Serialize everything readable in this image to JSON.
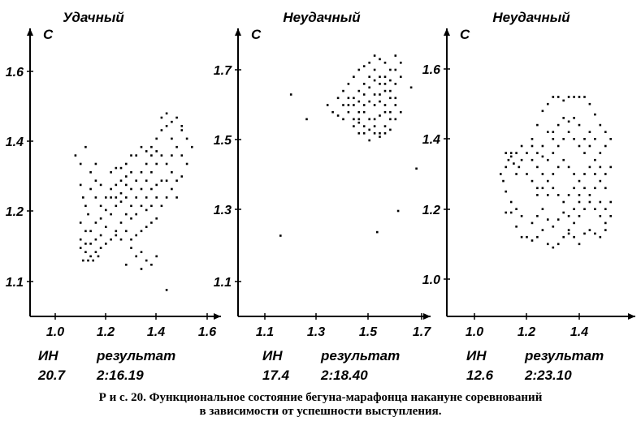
{
  "chart_data": [
    {
      "type": "scatter",
      "title": "Удачный",
      "ylabel": "С",
      "x_ticks": [
        "1.0",
        "1.2",
        "1.4",
        "1.6"
      ],
      "y_ticks": [
        "1.1",
        "1.2",
        "1.4",
        "1.6"
      ],
      "xlim": [
        0.9,
        1.64
      ],
      "ylim": [
        1.0,
        1.7
      ],
      "footer": {
        "label1": "ИН",
        "label2": "результат",
        "value1": "20.7",
        "value2": "2:16.19"
      },
      "points": [
        [
          1.08,
          1.4
        ],
        [
          1.12,
          1.42
        ],
        [
          1.1,
          1.38
        ],
        [
          1.14,
          1.36
        ],
        [
          1.16,
          1.38
        ],
        [
          1.1,
          1.33
        ],
        [
          1.11,
          1.3
        ],
        [
          1.12,
          1.28
        ],
        [
          1.13,
          1.26
        ],
        [
          1.1,
          1.24
        ],
        [
          1.12,
          1.22
        ],
        [
          1.14,
          1.22
        ],
        [
          1.16,
          1.24
        ],
        [
          1.18,
          1.25
        ],
        [
          1.2,
          1.23
        ],
        [
          1.1,
          1.2
        ],
        [
          1.12,
          1.19
        ],
        [
          1.14,
          1.19
        ],
        [
          1.16,
          1.2
        ],
        [
          1.18,
          1.21
        ],
        [
          1.1,
          1.18
        ],
        [
          1.12,
          1.17
        ],
        [
          1.14,
          1.16
        ],
        [
          1.16,
          1.17
        ],
        [
          1.11,
          1.15
        ],
        [
          1.13,
          1.15
        ],
        [
          1.15,
          1.15
        ],
        [
          1.17,
          1.16
        ],
        [
          1.18,
          1.18
        ],
        [
          1.2,
          1.19
        ],
        [
          1.22,
          1.2
        ],
        [
          1.24,
          1.21
        ],
        [
          1.22,
          1.26
        ],
        [
          1.24,
          1.28
        ],
        [
          1.26,
          1.29
        ],
        [
          1.28,
          1.3
        ],
        [
          1.2,
          1.3
        ],
        [
          1.22,
          1.32
        ],
        [
          1.24,
          1.33
        ],
        [
          1.26,
          1.34
        ],
        [
          1.28,
          1.35
        ],
        [
          1.3,
          1.36
        ],
        [
          1.22,
          1.36
        ],
        [
          1.24,
          1.37
        ],
        [
          1.26,
          1.37
        ],
        [
          1.28,
          1.38
        ],
        [
          1.3,
          1.4
        ],
        [
          1.32,
          1.4
        ],
        [
          1.34,
          1.42
        ],
        [
          1.36,
          1.41
        ],
        [
          1.38,
          1.42
        ],
        [
          1.4,
          1.44
        ],
        [
          1.42,
          1.46
        ],
        [
          1.44,
          1.47
        ],
        [
          1.46,
          1.48
        ],
        [
          1.48,
          1.49
        ],
        [
          1.5,
          1.47
        ],
        [
          1.42,
          1.49
        ],
        [
          1.44,
          1.5
        ],
        [
          1.46,
          1.44
        ],
        [
          1.48,
          1.42
        ],
        [
          1.5,
          1.4
        ],
        [
          1.52,
          1.44
        ],
        [
          1.54,
          1.42
        ],
        [
          1.52,
          1.38
        ],
        [
          1.5,
          1.35
        ],
        [
          1.48,
          1.34
        ],
        [
          1.46,
          1.36
        ],
        [
          1.44,
          1.38
        ],
        [
          1.42,
          1.4
        ],
        [
          1.4,
          1.38
        ],
        [
          1.38,
          1.36
        ],
        [
          1.36,
          1.34
        ],
        [
          1.34,
          1.32
        ],
        [
          1.32,
          1.3
        ],
        [
          1.3,
          1.28
        ],
        [
          1.28,
          1.26
        ],
        [
          1.26,
          1.24
        ],
        [
          1.24,
          1.22
        ],
        [
          1.28,
          1.22
        ],
        [
          1.3,
          1.2
        ],
        [
          1.32,
          1.21
        ],
        [
          1.34,
          1.22
        ],
        [
          1.36,
          1.23
        ],
        [
          1.38,
          1.24
        ],
        [
          1.4,
          1.25
        ],
        [
          1.42,
          1.28
        ],
        [
          1.44,
          1.3
        ],
        [
          1.46,
          1.32
        ],
        [
          1.48,
          1.3
        ],
        [
          1.4,
          1.33
        ],
        [
          1.38,
          1.32
        ],
        [
          1.36,
          1.3
        ],
        [
          1.34,
          1.28
        ],
        [
          1.32,
          1.26
        ],
        [
          1.3,
          1.25
        ],
        [
          1.36,
          1.27
        ],
        [
          1.38,
          1.28
        ],
        [
          1.4,
          1.3
        ],
        [
          1.42,
          1.34
        ],
        [
          1.44,
          1.34
        ],
        [
          1.34,
          1.36
        ],
        [
          1.36,
          1.38
        ],
        [
          1.38,
          1.4
        ],
        [
          1.4,
          1.41
        ],
        [
          1.32,
          1.34
        ],
        [
          1.3,
          1.32
        ],
        [
          1.28,
          1.33
        ],
        [
          1.26,
          1.31
        ],
        [
          1.24,
          1.3
        ],
        [
          1.22,
          1.3
        ],
        [
          1.2,
          1.27
        ],
        [
          1.18,
          1.28
        ],
        [
          1.16,
          1.3
        ],
        [
          1.14,
          1.32
        ],
        [
          1.16,
          1.34
        ],
        [
          1.18,
          1.33
        ],
        [
          1.28,
          1.14
        ],
        [
          1.32,
          1.16
        ],
        [
          1.34,
          1.17
        ],
        [
          1.36,
          1.15
        ],
        [
          1.38,
          1.14
        ],
        [
          1.4,
          1.16
        ],
        [
          1.34,
          1.13
        ],
        [
          1.44,
          1.08
        ],
        [
          1.3,
          1.18
        ],
        [
          1.26,
          1.2
        ],
        [
          1.46,
          1.4
        ],
        [
          1.5,
          1.46
        ]
      ]
    },
    {
      "type": "scatter",
      "title": "Неудачный",
      "ylabel": "С",
      "x_ticks": [
        "1.1",
        "1.3",
        "1.5",
        "1.7"
      ],
      "y_ticks": [
        "1.1",
        "1.3",
        "1.5",
        "1.7"
      ],
      "xlim": [
        1.0,
        1.74
      ],
      "ylim": [
        1.0,
        1.8
      ],
      "footer": {
        "label1": "ИН",
        "label2": "результат",
        "value1": "17.4",
        "value2": "2:18.40"
      },
      "points": [
        [
          1.16,
          1.23
        ],
        [
          1.2,
          1.63
        ],
        [
          1.26,
          1.56
        ],
        [
          1.34,
          1.6
        ],
        [
          1.36,
          1.58
        ],
        [
          1.38,
          1.57
        ],
        [
          1.4,
          1.56
        ],
        [
          1.42,
          1.58
        ],
        [
          1.44,
          1.56
        ],
        [
          1.46,
          1.55
        ],
        [
          1.48,
          1.54
        ],
        [
          1.5,
          1.53
        ],
        [
          1.52,
          1.52
        ],
        [
          1.54,
          1.51
        ],
        [
          1.56,
          1.52
        ],
        [
          1.58,
          1.53
        ],
        [
          1.6,
          1.56
        ],
        [
          1.62,
          1.58
        ],
        [
          1.6,
          1.62
        ],
        [
          1.58,
          1.64
        ],
        [
          1.56,
          1.66
        ],
        [
          1.54,
          1.68
        ],
        [
          1.52,
          1.7
        ],
        [
          1.5,
          1.72
        ],
        [
          1.48,
          1.71
        ],
        [
          1.46,
          1.7
        ],
        [
          1.44,
          1.68
        ],
        [
          1.42,
          1.66
        ],
        [
          1.4,
          1.64
        ],
        [
          1.42,
          1.62
        ],
        [
          1.44,
          1.6
        ],
        [
          1.46,
          1.61
        ],
        [
          1.48,
          1.63
        ],
        [
          1.5,
          1.65
        ],
        [
          1.52,
          1.67
        ],
        [
          1.54,
          1.66
        ],
        [
          1.56,
          1.64
        ],
        [
          1.58,
          1.62
        ],
        [
          1.6,
          1.6
        ],
        [
          1.56,
          1.58
        ],
        [
          1.54,
          1.57
        ],
        [
          1.52,
          1.56
        ],
        [
          1.5,
          1.56
        ],
        [
          1.48,
          1.58
        ],
        [
          1.46,
          1.58
        ],
        [
          1.44,
          1.62
        ],
        [
          1.46,
          1.64
        ],
        [
          1.48,
          1.66
        ],
        [
          1.5,
          1.68
        ],
        [
          1.52,
          1.63
        ],
        [
          1.54,
          1.61
        ],
        [
          1.56,
          1.6
        ],
        [
          1.58,
          1.58
        ],
        [
          1.6,
          1.66
        ],
        [
          1.58,
          1.7
        ],
        [
          1.56,
          1.72
        ],
        [
          1.54,
          1.73
        ],
        [
          1.52,
          1.74
        ],
        [
          1.6,
          1.74
        ],
        [
          1.62,
          1.72
        ],
        [
          1.6,
          1.7
        ],
        [
          1.62,
          1.68
        ],
        [
          1.44,
          1.54
        ],
        [
          1.46,
          1.52
        ],
        [
          1.48,
          1.52
        ],
        [
          1.5,
          1.5
        ],
        [
          1.52,
          1.54
        ],
        [
          1.54,
          1.52
        ],
        [
          1.56,
          1.54
        ],
        [
          1.58,
          1.56
        ],
        [
          1.42,
          1.6
        ],
        [
          1.4,
          1.6
        ],
        [
          1.38,
          1.62
        ],
        [
          1.46,
          1.56
        ],
        [
          1.48,
          1.6
        ],
        [
          1.5,
          1.61
        ],
        [
          1.52,
          1.6
        ],
        [
          1.54,
          1.63
        ],
        [
          1.56,
          1.68
        ],
        [
          1.58,
          1.67
        ],
        [
          1.66,
          1.65
        ],
        [
          1.68,
          1.42
        ],
        [
          1.61,
          1.3
        ],
        [
          1.53,
          1.24
        ]
      ]
    },
    {
      "type": "scatter",
      "title": "Неудачный",
      "ylabel": "С",
      "x_ticks": [
        "1.0",
        "1.2",
        "1.4"
      ],
      "y_ticks": [
        "1.0",
        "1.2",
        "1.4",
        "1.6"
      ],
      "xlim": [
        0.9,
        1.64
      ],
      "ylim": [
        0.9,
        1.7
      ],
      "footer": {
        "label1": "ИН",
        "label2": "результат",
        "value1": "12.6",
        "value2": "2:23.10"
      },
      "points": [
        [
          1.1,
          1.3
        ],
        [
          1.11,
          1.28
        ],
        [
          1.12,
          1.32
        ],
        [
          1.13,
          1.34
        ],
        [
          1.14,
          1.36
        ],
        [
          1.15,
          1.33
        ],
        [
          1.16,
          1.3
        ],
        [
          1.17,
          1.32
        ],
        [
          1.18,
          1.34
        ],
        [
          1.12,
          1.25
        ],
        [
          1.14,
          1.22
        ],
        [
          1.16,
          1.2
        ],
        [
          1.18,
          1.18
        ],
        [
          1.12,
          1.19
        ],
        [
          1.14,
          1.19
        ],
        [
          1.16,
          1.15
        ],
        [
          1.18,
          1.12
        ],
        [
          1.2,
          1.12
        ],
        [
          1.22,
          1.11
        ],
        [
          1.24,
          1.12
        ],
        [
          1.26,
          1.14
        ],
        [
          1.28,
          1.1
        ],
        [
          1.3,
          1.09
        ],
        [
          1.32,
          1.1
        ],
        [
          1.34,
          1.12
        ],
        [
          1.36,
          1.13
        ],
        [
          1.38,
          1.12
        ],
        [
          1.4,
          1.1
        ],
        [
          1.42,
          1.13
        ],
        [
          1.44,
          1.14
        ],
        [
          1.46,
          1.13
        ],
        [
          1.48,
          1.12
        ],
        [
          1.5,
          1.14
        ],
        [
          1.22,
          1.16
        ],
        [
          1.24,
          1.18
        ],
        [
          1.26,
          1.2
        ],
        [
          1.28,
          1.17
        ],
        [
          1.3,
          1.15
        ],
        [
          1.32,
          1.17
        ],
        [
          1.34,
          1.19
        ],
        [
          1.36,
          1.18
        ],
        [
          1.38,
          1.16
        ],
        [
          1.4,
          1.18
        ],
        [
          1.42,
          1.2
        ],
        [
          1.44,
          1.22
        ],
        [
          1.46,
          1.2
        ],
        [
          1.48,
          1.22
        ],
        [
          1.5,
          1.2
        ],
        [
          1.52,
          1.22
        ],
        [
          1.22,
          1.4
        ],
        [
          1.24,
          1.44
        ],
        [
          1.26,
          1.48
        ],
        [
          1.28,
          1.5
        ],
        [
          1.3,
          1.52
        ],
        [
          1.32,
          1.52
        ],
        [
          1.34,
          1.51
        ],
        [
          1.36,
          1.52
        ],
        [
          1.38,
          1.52
        ],
        [
          1.4,
          1.52
        ],
        [
          1.42,
          1.52
        ],
        [
          1.44,
          1.5
        ],
        [
          1.46,
          1.47
        ],
        [
          1.48,
          1.44
        ],
        [
          1.5,
          1.42
        ],
        [
          1.52,
          1.4
        ],
        [
          1.5,
          1.38
        ],
        [
          1.48,
          1.36
        ],
        [
          1.46,
          1.34
        ],
        [
          1.44,
          1.32
        ],
        [
          1.42,
          1.3
        ],
        [
          1.4,
          1.28
        ],
        [
          1.38,
          1.26
        ],
        [
          1.36,
          1.24
        ],
        [
          1.34,
          1.22
        ],
        [
          1.32,
          1.24
        ],
        [
          1.3,
          1.26
        ],
        [
          1.28,
          1.28
        ],
        [
          1.26,
          1.3
        ],
        [
          1.24,
          1.32
        ],
        [
          1.22,
          1.34
        ],
        [
          1.2,
          1.36
        ],
        [
          1.22,
          1.38
        ],
        [
          1.24,
          1.36
        ],
        [
          1.26,
          1.35
        ],
        [
          1.28,
          1.34
        ],
        [
          1.3,
          1.36
        ],
        [
          1.32,
          1.38
        ],
        [
          1.34,
          1.4
        ],
        [
          1.36,
          1.42
        ],
        [
          1.38,
          1.4
        ],
        [
          1.4,
          1.38
        ],
        [
          1.42,
          1.36
        ],
        [
          1.44,
          1.38
        ],
        [
          1.46,
          1.4
        ],
        [
          1.48,
          1.32
        ],
        [
          1.5,
          1.3
        ],
        [
          1.52,
          1.32
        ],
        [
          1.5,
          1.26
        ],
        [
          1.48,
          1.28
        ],
        [
          1.46,
          1.26
        ],
        [
          1.44,
          1.24
        ],
        [
          1.42,
          1.26
        ],
        [
          1.4,
          1.24
        ],
        [
          1.38,
          1.3
        ],
        [
          1.36,
          1.32
        ],
        [
          1.34,
          1.34
        ],
        [
          1.32,
          1.32
        ],
        [
          1.3,
          1.3
        ],
        [
          1.28,
          1.24
        ],
        [
          1.26,
          1.26
        ],
        [
          1.24,
          1.26
        ],
        [
          1.22,
          1.28
        ],
        [
          1.2,
          1.3
        ],
        [
          1.18,
          1.38
        ],
        [
          1.16,
          1.36
        ],
        [
          1.14,
          1.35
        ],
        [
          1.12,
          1.36
        ],
        [
          1.3,
          1.42
        ],
        [
          1.32,
          1.44
        ],
        [
          1.34,
          1.46
        ],
        [
          1.36,
          1.45
        ],
        [
          1.38,
          1.46
        ],
        [
          1.4,
          1.44
        ],
        [
          1.3,
          1.4
        ],
        [
          1.28,
          1.42
        ],
        [
          1.26,
          1.38
        ],
        [
          1.24,
          1.24
        ],
        [
          1.42,
          1.4
        ],
        [
          1.44,
          1.42
        ],
        [
          1.46,
          1.3
        ],
        [
          1.48,
          1.18
        ],
        [
          1.5,
          1.16
        ],
        [
          1.52,
          1.18
        ],
        [
          1.38,
          1.2
        ],
        [
          1.4,
          1.22
        ],
        [
          1.36,
          1.14
        ]
      ]
    }
  ],
  "caption": {
    "line1": "Р и с.  20.  Функциональное состояние бегуна-марафонца накануне соревнований",
    "line2": "в зависимости от успешности выступления."
  }
}
